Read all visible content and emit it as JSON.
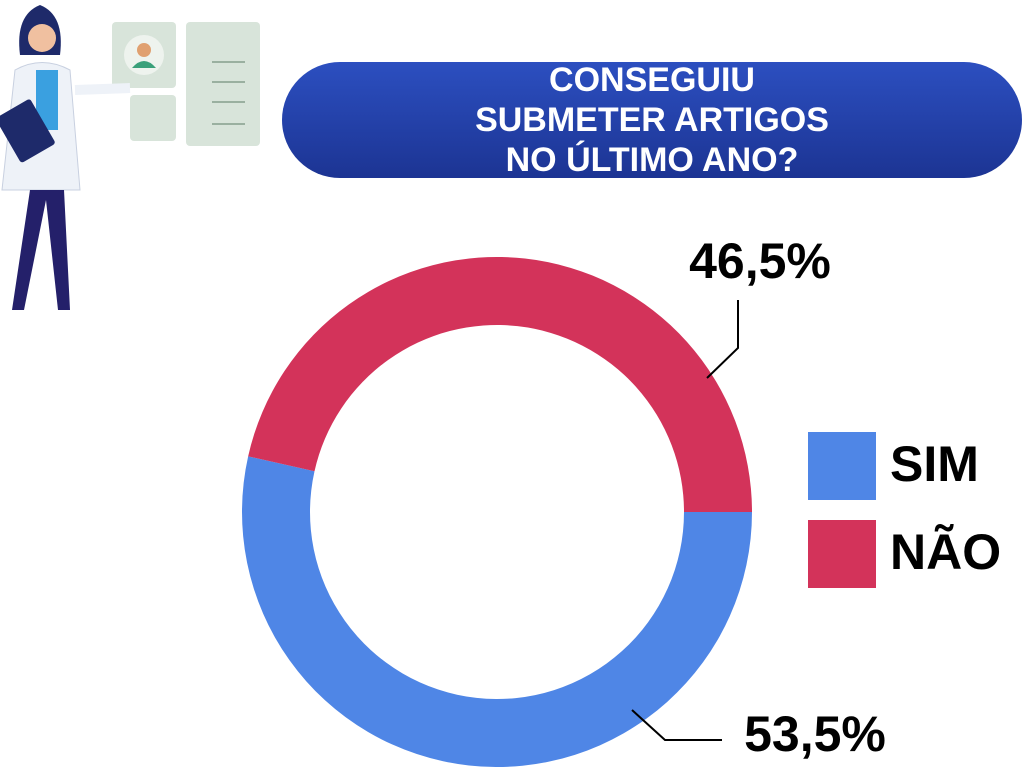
{
  "chart_data": {
    "type": "pie",
    "donut": true,
    "title": "CONSEGUIU SUBMETER ARTIGOS NO ÚLTIMO ANO?",
    "categories": [
      "SIM",
      "NÃO"
    ],
    "values": [
      53.5,
      46.5
    ],
    "value_labels": [
      "53,5%",
      "46,5%"
    ],
    "colors": [
      "#4f86e6",
      "#d3335a"
    ]
  }
}
